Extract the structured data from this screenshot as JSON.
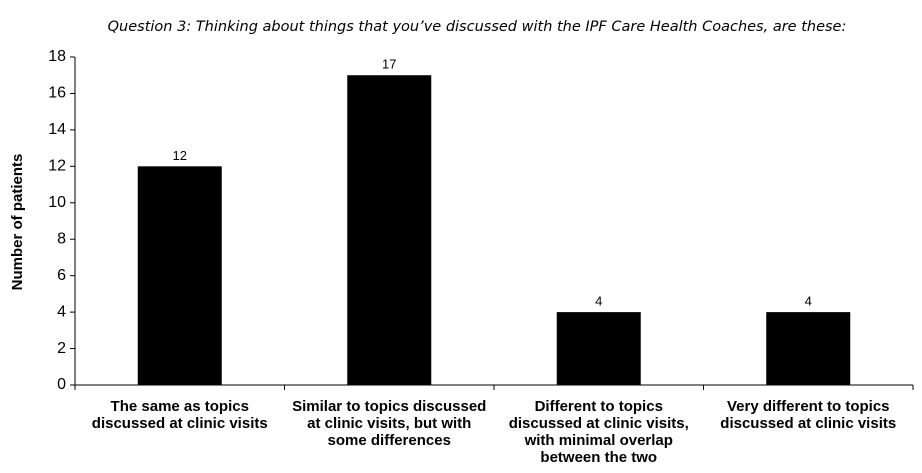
{
  "chart_data": {
    "type": "bar",
    "title": "Question 3: Thinking about things that you’ve discussed with the IPF Care Health Coaches, are these:",
    "y_label": "Number of patients",
    "categories": [
      "The same as topics discussed at clinic visits",
      "Similar to topics discussed at clinic visits, but with some differences",
      "Different to topics discussed at clinic visits, with minimal overlap between the two",
      "Very different to topics discussed at clinic visits"
    ],
    "values": [
      12,
      17,
      4,
      4
    ],
    "color": "#000000",
    "ylim": [
      0,
      18
    ],
    "yticks": [
      0,
      2,
      4,
      6,
      8,
      10,
      12,
      14,
      16,
      18
    ],
    "grid": false
  }
}
